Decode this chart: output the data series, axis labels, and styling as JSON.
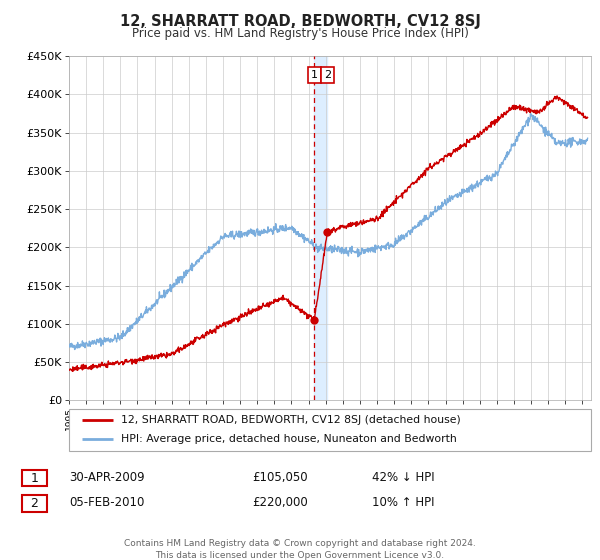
{
  "title": "12, SHARRATT ROAD, BEDWORTH, CV12 8SJ",
  "subtitle": "Price paid vs. HM Land Registry's House Price Index (HPI)",
  "ylim": [
    0,
    450000
  ],
  "yticks": [
    0,
    50000,
    100000,
    150000,
    200000,
    250000,
    300000,
    350000,
    400000,
    450000
  ],
  "ytick_labels": [
    "£0",
    "£50K",
    "£100K",
    "£150K",
    "£200K",
    "£250K",
    "£300K",
    "£350K",
    "£400K",
    "£450K"
  ],
  "xlim_start": 1995.0,
  "xlim_end": 2025.5,
  "line1_color": "#cc0000",
  "line2_color": "#7aaddd",
  "marker_color": "#cc0000",
  "annotation_band_color": "#ddeeff",
  "annotation_line_color": "#cc0000",
  "transaction1_x": 2009.33,
  "transaction1_y": 105050,
  "transaction2_x": 2010.09,
  "transaction2_y": 220000,
  "legend_label1": "12, SHARRATT ROAD, BEDWORTH, CV12 8SJ (detached house)",
  "legend_label2": "HPI: Average price, detached house, Nuneaton and Bedworth",
  "table_row1_date": "30-APR-2009",
  "table_row1_price": "£105,050",
  "table_row1_hpi": "42% ↓ HPI",
  "table_row2_date": "05-FEB-2010",
  "table_row2_price": "£220,000",
  "table_row2_hpi": "10% ↑ HPI",
  "footer": "Contains HM Land Registry data © Crown copyright and database right 2024.\nThis data is licensed under the Open Government Licence v3.0.",
  "background_color": "#ffffff",
  "grid_color": "#cccccc"
}
